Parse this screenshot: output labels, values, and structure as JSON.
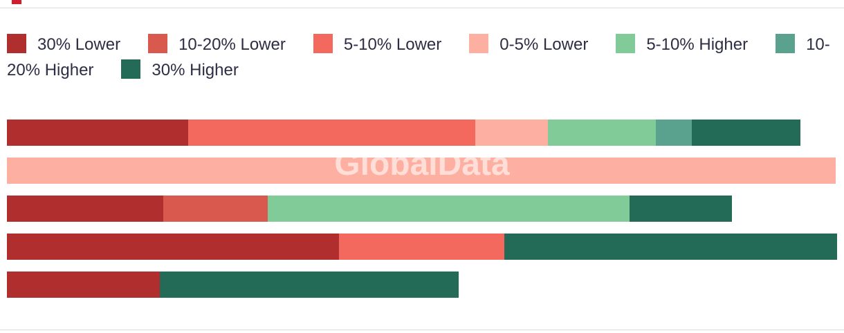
{
  "page": {
    "background": "#ffffff",
    "divider_color": "#dbdbdb",
    "brand_accent_color": "#d01f2e",
    "text_color": "#2d2d44"
  },
  "watermark": {
    "text": "GlobalData",
    "color": "rgba(255,255,255,0.58)"
  },
  "legend": {
    "position": "top",
    "items": [
      {
        "label": "30% Lower",
        "color": "#b02e2e"
      },
      {
        "label": "10-20% Lower",
        "color": "#d9594f"
      },
      {
        "label": "5-10% Lower",
        "color": "#f3695d"
      },
      {
        "label": "0-5% Lower",
        "color": "#fdb0a1"
      },
      {
        "label": "5-10% Higher",
        "color": "#80cb98"
      },
      {
        "label": "10-20% Higher",
        "color": "#5aa28e"
      },
      {
        "label": "30% Higher",
        "color": "#236a57"
      }
    ]
  },
  "chart_data": {
    "type": "bar",
    "orientation": "horizontal",
    "stacked": true,
    "title": "",
    "xlabel": "",
    "ylabel": "",
    "axes_visible": false,
    "gridlines": false,
    "legend_position": "top",
    "value_unit": "percent of full plot width (no axis or data labels shown in image)",
    "categories": [
      "bar-1",
      "bar-2",
      "bar-3",
      "bar-4",
      "bar-5"
    ],
    "rows": [
      {
        "category": "bar-1",
        "segments": [
          {
            "name": "30% Lower",
            "value": 21.8
          },
          {
            "name": "5-10% Lower",
            "value": 34.6
          },
          {
            "name": "0-5% Lower",
            "value": 8.8
          },
          {
            "name": "5-10% Higher",
            "value": 13.0
          },
          {
            "name": "10-20% Higher",
            "value": 4.3
          },
          {
            "name": "30% Higher",
            "value": 13.1
          }
        ]
      },
      {
        "category": "bar-2",
        "segments": [
          {
            "name": "0-5% Lower",
            "value": 99.8
          }
        ]
      },
      {
        "category": "bar-3",
        "segments": [
          {
            "name": "30% Lower",
            "value": 18.8
          },
          {
            "name": "10-20% Lower",
            "value": 12.6
          },
          {
            "name": "5-10% Higher",
            "value": 43.6
          },
          {
            "name": "30% Higher",
            "value": 12.3
          }
        ]
      },
      {
        "category": "bar-4",
        "segments": [
          {
            "name": "30% Lower",
            "value": 40.0
          },
          {
            "name": "5-10% Lower",
            "value": 19.9
          },
          {
            "name": "30% Higher",
            "value": 40.1
          }
        ]
      },
      {
        "category": "bar-5",
        "segments": [
          {
            "name": "30% Lower",
            "value": 18.4
          },
          {
            "name": "30% Higher",
            "value": 36.0
          }
        ]
      }
    ]
  }
}
